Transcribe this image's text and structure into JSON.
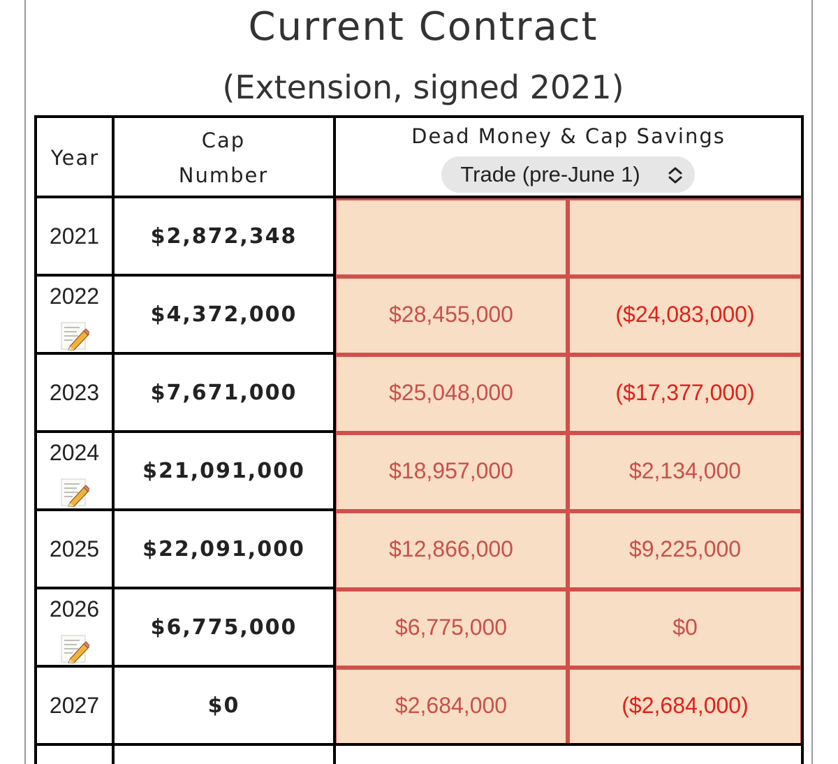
{
  "header": {
    "title": "Current Contract",
    "subtitle": "(Extension, signed 2021)"
  },
  "table": {
    "columns": [
      "Year",
      "Cap Number",
      "Dead Money & Cap Savings"
    ],
    "dropdown": "Trade (pre-June 1)",
    "rows": [
      {
        "year": "2021",
        "cap_number": "$2,872,348"
      },
      {
        "year": "2022",
        "cap_number": "$4,372,000",
        "dead_money": "$28,455,000",
        "cap_savings": "($24,083,000)"
      },
      {
        "year": "2023",
        "cap_number": "$7,671,000",
        "dead_money": "$25,048,000",
        "cap_savings": "($17,377,000)"
      },
      {
        "year": "2024",
        "cap_number": "$21,091,000",
        "dead_money": "$18,957,000",
        "cap_savings": "$2,134,000"
      },
      {
        "year": "2025",
        "cap_number": "$22,091,000",
        "dead_money": "$12,866,000",
        "cap_savings": "$9,225,000"
      },
      {
        "year": "2026",
        "cap_number": "$6,775,000",
        "dead_money": "$6,775,000",
        "cap_savings": "$0"
      },
      {
        "year": "2027",
        "cap_number": "$0",
        "dead_money": "$2,684,000",
        "cap_savings": "($2,684,000)"
      }
    ]
  }
}
